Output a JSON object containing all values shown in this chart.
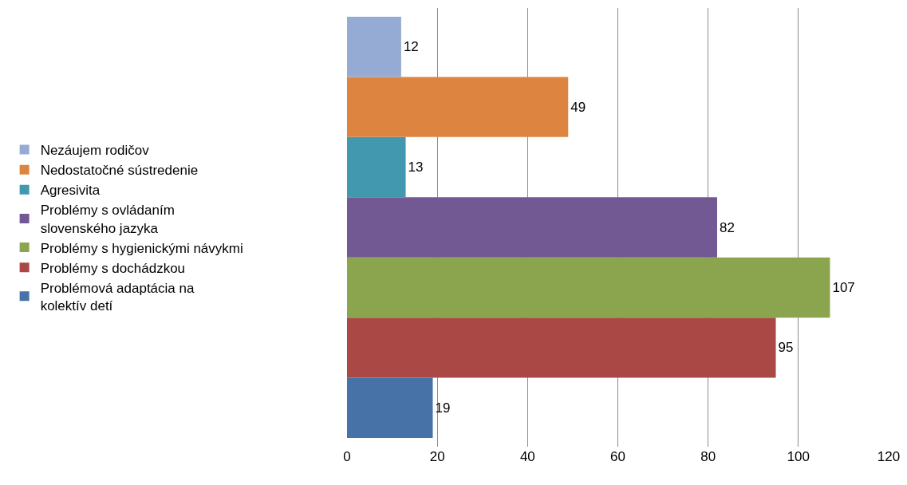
{
  "chart_data": {
    "type": "bar",
    "orientation": "horizontal",
    "categories": [
      null
    ],
    "series": [
      {
        "name": "Nezáujem rodičov",
        "color": "#95abd3",
        "values": [
          12
        ]
      },
      {
        "name": "Nedostatočné sústredenie",
        "color": "#dd8540",
        "values": [
          49
        ]
      },
      {
        "name": "Agresivita",
        "color": "#4198af",
        "values": [
          13
        ]
      },
      {
        "name": "Problémy s ovládaním slovenského jazyka",
        "color": "#735994",
        "values": [
          82
        ]
      },
      {
        "name": "Problémy s hygienickými návykmi",
        "color": "#8ba54e",
        "values": [
          107
        ]
      },
      {
        "name": "Problémy s dochádzkou",
        "color": "#a94845",
        "values": [
          95
        ]
      },
      {
        "name": "Problémová adaptácia na kolektív detí",
        "color": "#4672a8",
        "values": [
          19
        ]
      }
    ],
    "xlim": [
      0,
      120
    ],
    "xticks": [
      0,
      20,
      40,
      60,
      80,
      100,
      120
    ],
    "grid": "x",
    "legend": "left",
    "data_labels": true
  }
}
